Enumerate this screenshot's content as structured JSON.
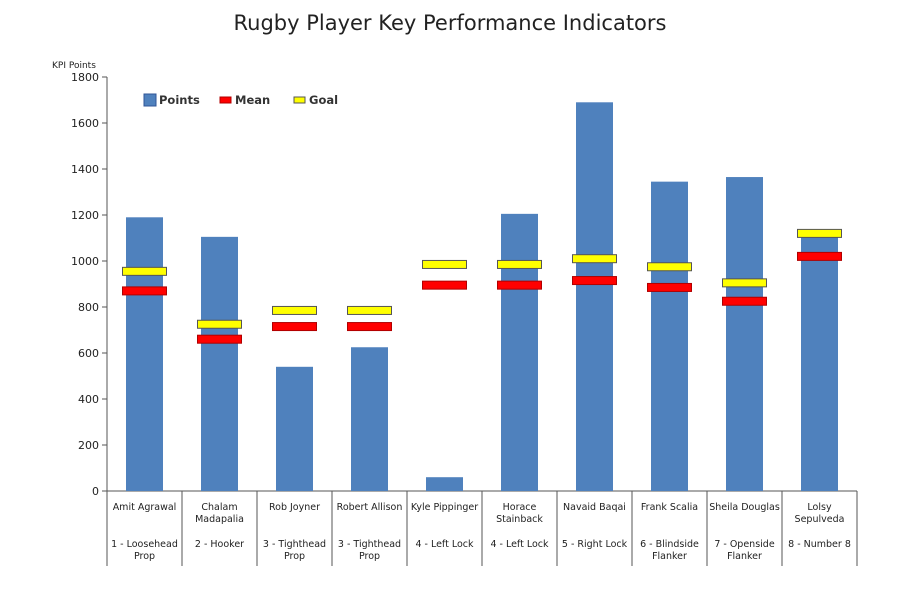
{
  "chart_data": {
    "type": "bar",
    "title": "Rugby Player Key Performance Indicators",
    "ylabel": "KPI Points",
    "xlabel": "",
    "ylim": [
      0,
      1800
    ],
    "yticks": [
      0,
      200,
      400,
      600,
      800,
      1000,
      1200,
      1400,
      1600,
      1800
    ],
    "grid": false,
    "legend_position": "top-left",
    "legend": [
      {
        "label": "Points",
        "color": "#4f81bd"
      },
      {
        "label": "Mean",
        "color": "#ff0000"
      },
      {
        "label": "Goal",
        "color": "#ffff00"
      }
    ],
    "categories": [
      {
        "name": [
          "Amit Agrawal"
        ],
        "position": [
          "1 - Loosehead",
          "Prop"
        ]
      },
      {
        "name": [
          "Chalam",
          "Madapalia"
        ],
        "position": [
          "2 - Hooker"
        ]
      },
      {
        "name": [
          "Rob Joyner"
        ],
        "position": [
          "3 - Tighthead",
          "Prop"
        ]
      },
      {
        "name": [
          "Robert Allison"
        ],
        "position": [
          "3 - Tighthead",
          "Prop"
        ]
      },
      {
        "name": [
          "Kyle Pippinger"
        ],
        "position": [
          "4 - Left Lock"
        ]
      },
      {
        "name": [
          "Horace",
          "Stainback"
        ],
        "position": [
          "4 - Left Lock"
        ]
      },
      {
        "name": [
          "Navaid Baqai"
        ],
        "position": [
          "5 - Right Lock"
        ]
      },
      {
        "name": [
          "Frank Scalia"
        ],
        "position": [
          "6 - Blindside",
          "Flanker"
        ]
      },
      {
        "name": [
          "Sheila Douglas"
        ],
        "position": [
          "7 - Openside",
          "Flanker"
        ]
      },
      {
        "name": [
          "Lolsy",
          "Sepulveda"
        ],
        "position": [
          "8 - Number 8"
        ]
      }
    ],
    "series": [
      {
        "name": "Points",
        "values": [
          1190,
          1105,
          540,
          625,
          60,
          1205,
          1690,
          1345,
          1365,
          1125
        ]
      },
      {
        "name": "Mean",
        "values": [
          870,
          660,
          715,
          715,
          895,
          895,
          915,
          885,
          825,
          1020
        ]
      },
      {
        "name": "Goal",
        "values": [
          955,
          725,
          785,
          785,
          985,
          985,
          1010,
          975,
          905,
          1120
        ]
      }
    ],
    "colors": {
      "points": "#4f81bd",
      "mean": "#ff0000",
      "mean_border": "#b00000",
      "goal": "#ffff00",
      "goal_border": "#555555",
      "axis": "#555555"
    }
  }
}
